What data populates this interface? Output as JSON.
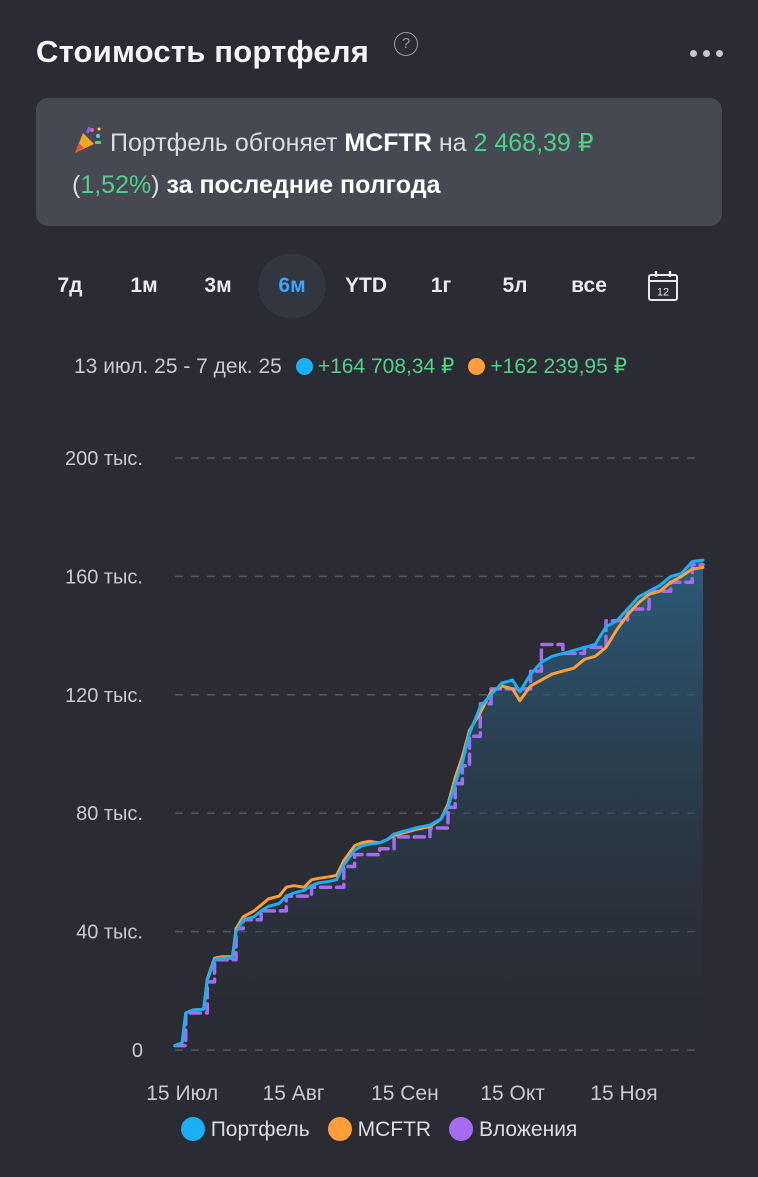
{
  "header": {
    "title": "Стоимость портфеля",
    "help_glyph": "?"
  },
  "banner": {
    "icon": "party-popper-icon",
    "text_1": "Портфель обгоняет",
    "benchmark": "MCFTR",
    "text_2": "на",
    "amount": "2 468,39 ₽",
    "paren_open": "(",
    "percent": "1,52%",
    "paren_close": ")",
    "text_3": "за последние полгода"
  },
  "periods": [
    {
      "label": "7д",
      "active": false
    },
    {
      "label": "1м",
      "active": false
    },
    {
      "label": "3м",
      "active": false
    },
    {
      "label": "6м",
      "active": true
    },
    {
      "label": "YTD",
      "active": false
    },
    {
      "label": "1г",
      "active": false
    },
    {
      "label": "5л",
      "active": false
    },
    {
      "label": "все",
      "active": false
    }
  ],
  "calendar_day": "12",
  "summary": {
    "range": "13 июл. 25 - 7 дек. 25",
    "portfolio_change": "+164 708,34 ₽",
    "mcftr_change": "+162 239,95 ₽"
  },
  "colors": {
    "portfolio": "#1ab0f5",
    "mcftr": "#ff9e3a",
    "investments": "#a66cf0",
    "positive": "#4fd28a",
    "accent": "#3aa6ff"
  },
  "chart_data": {
    "type": "line",
    "x_start": "2025-07-13",
    "x_end": "2025-12-07",
    "ylim": [
      0,
      200000
    ],
    "y_ticks": [
      {
        "value": 0,
        "label": "0"
      },
      {
        "value": 40000,
        "label": "40 тыс."
      },
      {
        "value": 80000,
        "label": "80 тыс."
      },
      {
        "value": 120000,
        "label": "120 тыс."
      },
      {
        "value": 160000,
        "label": "160 тыс."
      },
      {
        "value": 200000,
        "label": "200 тыс."
      }
    ],
    "x_ticks": [
      {
        "date": "2025-07-15",
        "label": "15 Июл"
      },
      {
        "date": "2025-08-15",
        "label": "15 Авг"
      },
      {
        "date": "2025-09-15",
        "label": "15 Сен"
      },
      {
        "date": "2025-10-15",
        "label": "15 Окт"
      },
      {
        "date": "2025-11-15",
        "label": "15 Ноя"
      }
    ],
    "grid": true,
    "legend_position": "bottom",
    "series": [
      {
        "name": "Портфель",
        "style": "solid-area",
        "points": [
          [
            "2025-07-13",
            1500
          ],
          [
            "2025-07-15",
            2500
          ],
          [
            "2025-07-16",
            12500
          ],
          [
            "2025-07-18",
            13500
          ],
          [
            "2025-07-21",
            13800
          ],
          [
            "2025-07-22",
            23500
          ],
          [
            "2025-07-24",
            30500
          ],
          [
            "2025-07-26",
            31000
          ],
          [
            "2025-07-29",
            31000
          ],
          [
            "2025-07-30",
            40000
          ],
          [
            "2025-08-01",
            44000
          ],
          [
            "2025-08-04",
            45000
          ],
          [
            "2025-08-06",
            47000
          ],
          [
            "2025-08-08",
            48500
          ],
          [
            "2025-08-11",
            49500
          ],
          [
            "2025-08-13",
            52000
          ],
          [
            "2025-08-15",
            53000
          ],
          [
            "2025-08-18",
            54000
          ],
          [
            "2025-08-20",
            55500
          ],
          [
            "2025-08-22",
            56500
          ],
          [
            "2025-08-25",
            57000
          ],
          [
            "2025-08-27",
            57500
          ],
          [
            "2025-08-29",
            62500
          ],
          [
            "2025-09-01",
            67500
          ],
          [
            "2025-09-03",
            69000
          ],
          [
            "2025-09-05",
            69500
          ],
          [
            "2025-09-08",
            70000
          ],
          [
            "2025-09-10",
            71000
          ],
          [
            "2025-09-12",
            73000
          ],
          [
            "2025-09-15",
            74000
          ],
          [
            "2025-09-18",
            75000
          ],
          [
            "2025-09-22",
            76000
          ],
          [
            "2025-09-25",
            78000
          ],
          [
            "2025-09-27",
            82000
          ],
          [
            "2025-09-29",
            90000
          ],
          [
            "2025-10-01",
            97000
          ],
          [
            "2025-10-03",
            107000
          ],
          [
            "2025-10-06",
            116000
          ],
          [
            "2025-10-09",
            120000
          ],
          [
            "2025-10-12",
            124000
          ],
          [
            "2025-10-15",
            125000
          ],
          [
            "2025-10-17",
            121000
          ],
          [
            "2025-10-20",
            127000
          ],
          [
            "2025-10-23",
            131000
          ],
          [
            "2025-10-26",
            133000
          ],
          [
            "2025-10-29",
            134000
          ],
          [
            "2025-11-01",
            135000
          ],
          [
            "2025-11-04",
            136000
          ],
          [
            "2025-11-07",
            137000
          ],
          [
            "2025-11-10",
            143000
          ],
          [
            "2025-11-13",
            145000
          ],
          [
            "2025-11-16",
            149000
          ],
          [
            "2025-11-19",
            153000
          ],
          [
            "2025-11-22",
            155000
          ],
          [
            "2025-11-25",
            157000
          ],
          [
            "2025-11-28",
            160000
          ],
          [
            "2025-12-01",
            161000
          ],
          [
            "2025-12-04",
            165000
          ],
          [
            "2025-12-07",
            165500
          ]
        ]
      },
      {
        "name": "MCFTR",
        "style": "solid",
        "points": [
          [
            "2025-07-13",
            1500
          ],
          [
            "2025-07-15",
            2500
          ],
          [
            "2025-07-16",
            12500
          ],
          [
            "2025-07-18",
            13500
          ],
          [
            "2025-07-21",
            13800
          ],
          [
            "2025-07-22",
            24000
          ],
          [
            "2025-07-24",
            31000
          ],
          [
            "2025-07-26",
            31500
          ],
          [
            "2025-07-29",
            31500
          ],
          [
            "2025-07-30",
            41000
          ],
          [
            "2025-08-01",
            45000
          ],
          [
            "2025-08-04",
            47000
          ],
          [
            "2025-08-06",
            49000
          ],
          [
            "2025-08-08",
            51000
          ],
          [
            "2025-08-11",
            52000
          ],
          [
            "2025-08-13",
            55000
          ],
          [
            "2025-08-15",
            55500
          ],
          [
            "2025-08-18",
            55000
          ],
          [
            "2025-08-20",
            57500
          ],
          [
            "2025-08-22",
            58000
          ],
          [
            "2025-08-25",
            58500
          ],
          [
            "2025-08-27",
            59000
          ],
          [
            "2025-08-29",
            64000
          ],
          [
            "2025-09-01",
            69000
          ],
          [
            "2025-09-03",
            70000
          ],
          [
            "2025-09-05",
            70500
          ],
          [
            "2025-09-08",
            70000
          ],
          [
            "2025-09-10",
            71000
          ],
          [
            "2025-09-12",
            72500
          ],
          [
            "2025-09-15",
            73500
          ],
          [
            "2025-09-18",
            74500
          ],
          [
            "2025-09-22",
            75500
          ],
          [
            "2025-09-25",
            78000
          ],
          [
            "2025-09-27",
            83000
          ],
          [
            "2025-09-29",
            92000
          ],
          [
            "2025-10-01",
            99000
          ],
          [
            "2025-10-03",
            108000
          ],
          [
            "2025-10-06",
            114000
          ],
          [
            "2025-10-09",
            121000
          ],
          [
            "2025-10-12",
            123000
          ],
          [
            "2025-10-15",
            122000
          ],
          [
            "2025-10-17",
            118000
          ],
          [
            "2025-10-20",
            123000
          ],
          [
            "2025-10-23",
            125000
          ],
          [
            "2025-10-26",
            127000
          ],
          [
            "2025-10-29",
            128000
          ],
          [
            "2025-11-01",
            129000
          ],
          [
            "2025-11-04",
            132000
          ],
          [
            "2025-11-07",
            133000
          ],
          [
            "2025-11-10",
            136000
          ],
          [
            "2025-11-13",
            142000
          ],
          [
            "2025-11-16",
            147000
          ],
          [
            "2025-11-19",
            151000
          ],
          [
            "2025-11-22",
            154000
          ],
          [
            "2025-11-25",
            155000
          ],
          [
            "2025-11-28",
            158000
          ],
          [
            "2025-12-01",
            160000
          ],
          [
            "2025-12-04",
            162500
          ],
          [
            "2025-12-07",
            163000
          ]
        ]
      },
      {
        "name": "Вложения",
        "style": "dashed-step",
        "points": [
          [
            "2025-07-13",
            1500
          ],
          [
            "2025-07-16",
            12500
          ],
          [
            "2025-07-22",
            23000
          ],
          [
            "2025-07-24",
            30500
          ],
          [
            "2025-07-30",
            41000
          ],
          [
            "2025-08-01",
            44000
          ],
          [
            "2025-08-06",
            47000
          ],
          [
            "2025-08-13",
            52000
          ],
          [
            "2025-08-20",
            55000
          ],
          [
            "2025-08-29",
            62000
          ],
          [
            "2025-09-01",
            66000
          ],
          [
            "2025-09-08",
            68000
          ],
          [
            "2025-09-12",
            72000
          ],
          [
            "2025-09-22",
            75000
          ],
          [
            "2025-09-27",
            82000
          ],
          [
            "2025-09-29",
            90000
          ],
          [
            "2025-10-01",
            96000
          ],
          [
            "2025-10-03",
            106000
          ],
          [
            "2025-10-06",
            117000
          ],
          [
            "2025-10-09",
            122000
          ],
          [
            "2025-10-17",
            122000
          ],
          [
            "2025-10-20",
            128000
          ],
          [
            "2025-10-23",
            137000
          ],
          [
            "2025-10-29",
            134000
          ],
          [
            "2025-11-04",
            136000
          ],
          [
            "2025-11-10",
            145000
          ],
          [
            "2025-11-16",
            149000
          ],
          [
            "2025-11-22",
            155000
          ],
          [
            "2025-11-28",
            158000
          ],
          [
            "2025-12-04",
            164000
          ],
          [
            "2025-12-07",
            164000
          ]
        ]
      }
    ]
  }
}
